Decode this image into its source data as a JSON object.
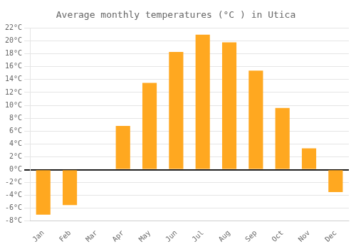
{
  "chart_data": {
    "type": "bar",
    "title": "Average monthly temperatures (°C ) in Utica",
    "categories": [
      "Jan",
      "Feb",
      "Mar",
      "Apr",
      "May",
      "Jun",
      "Jul",
      "Aug",
      "Sep",
      "Oct",
      "Nov",
      "Dec"
    ],
    "values": [
      -7.0,
      -5.5,
      0.0,
      6.8,
      13.5,
      18.3,
      21.0,
      19.8,
      15.4,
      9.6,
      3.3,
      -3.5
    ],
    "color": "#FFA820",
    "ylim": [
      -8,
      22
    ],
    "yticks": [
      {
        "value": -8,
        "label": "-8°C"
      },
      {
        "value": -6,
        "label": "-6°C"
      },
      {
        "value": -4,
        "label": "-4°C"
      },
      {
        "value": -2,
        "label": "-2°C"
      },
      {
        "value": 0,
        "label": "0°C"
      },
      {
        "value": 2,
        "label": "2°C"
      },
      {
        "value": 4,
        "label": "4°C"
      },
      {
        "value": 6,
        "label": "6°C"
      },
      {
        "value": 8,
        "label": "8°C"
      },
      {
        "value": 10,
        "label": "10°C"
      },
      {
        "value": 12,
        "label": "12°C"
      },
      {
        "value": 14,
        "label": "14°C"
      },
      {
        "value": 16,
        "label": "16°C"
      },
      {
        "value": 18,
        "label": "18°C"
      },
      {
        "value": 20,
        "label": "20°C"
      },
      {
        "value": 22,
        "label": "22°C"
      }
    ],
    "grid": true
  }
}
